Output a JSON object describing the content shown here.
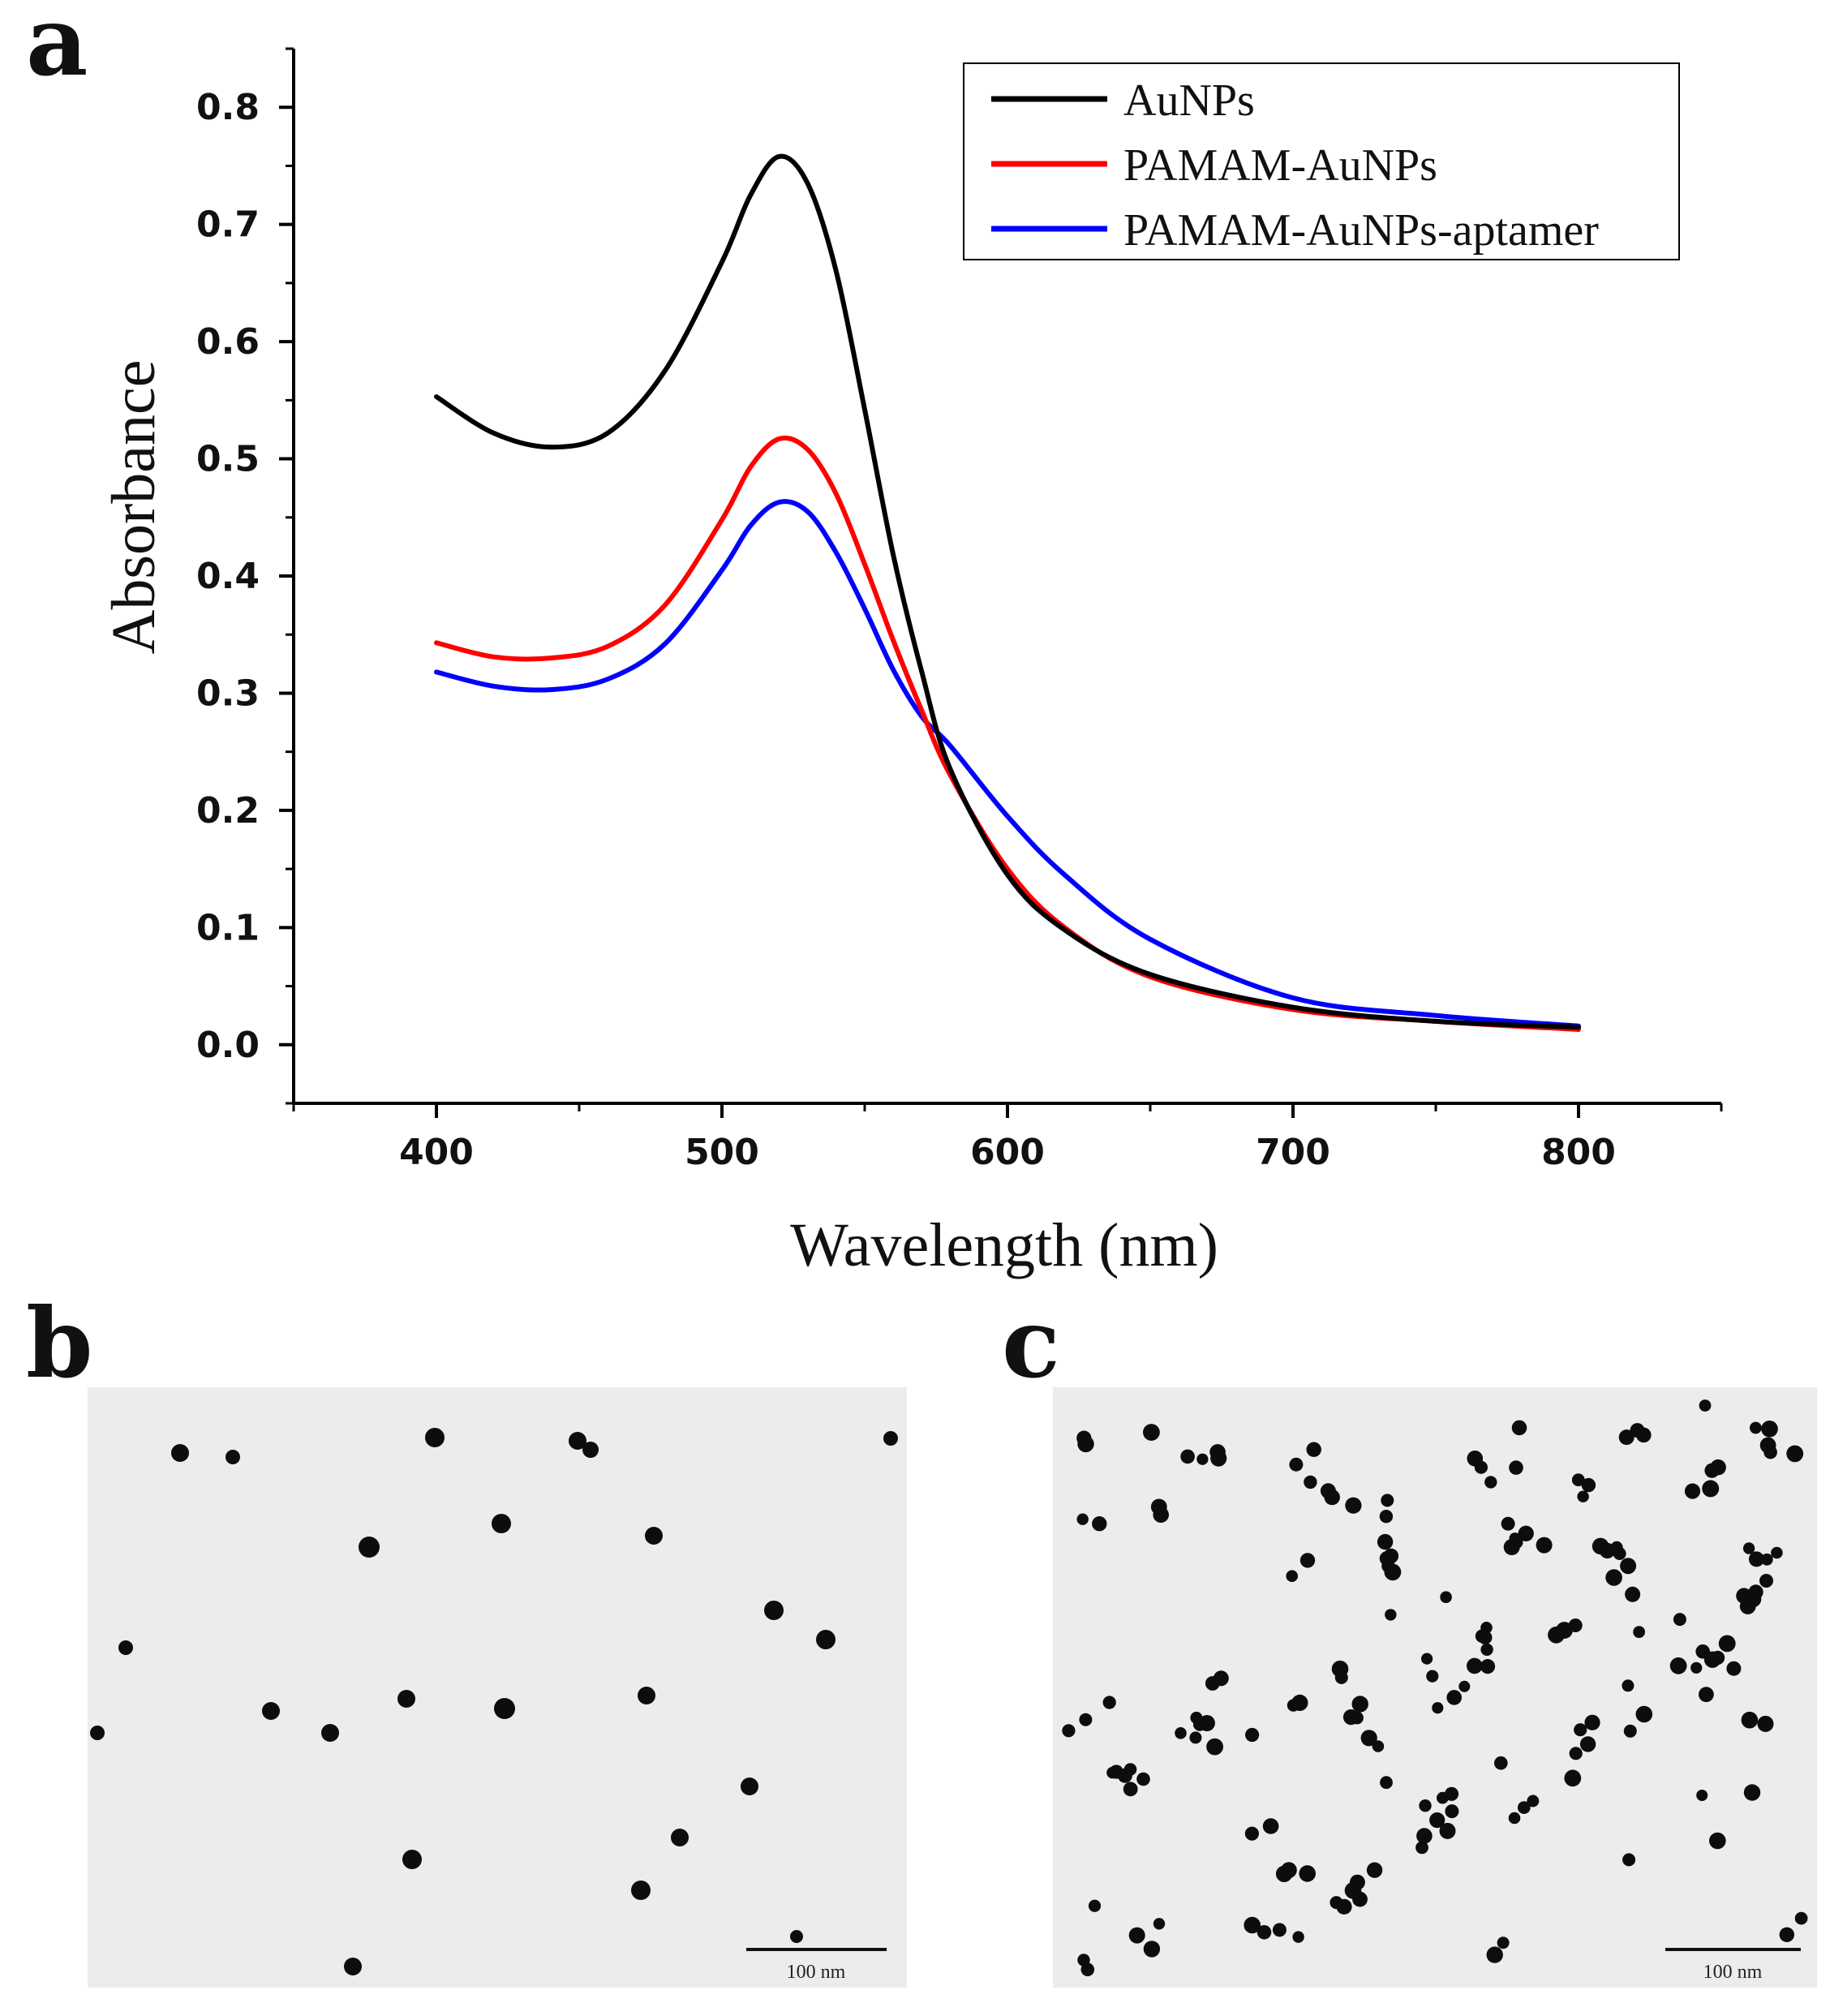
{
  "panels": {
    "a": "a",
    "b": "b",
    "c": "c"
  },
  "chart_data": {
    "type": "line",
    "title": "",
    "xlabel": "Wavelength (nm)",
    "ylabel": "Absorbance",
    "xlim": [
      350,
      850
    ],
    "ylim": [
      -0.05,
      0.85
    ],
    "xticks": [
      400,
      500,
      600,
      700,
      800
    ],
    "yticks": [
      0.0,
      0.1,
      0.2,
      0.3,
      0.4,
      0.5,
      0.6,
      0.7,
      0.8
    ],
    "ytick_labels": [
      "0.0",
      "0.1",
      "0.2",
      "0.3",
      "0.4",
      "0.5",
      "0.6",
      "0.7",
      "0.8"
    ],
    "legend_position": "top-right",
    "grid": false,
    "series": [
      {
        "name": "AuNPs",
        "color": "#000000",
        "x": [
          400,
          420,
          440,
          460,
          480,
          500,
          510,
          520,
          530,
          540,
          550,
          560,
          570,
          580,
          600,
          620,
          650,
          700,
          750,
          800
        ],
        "y": [
          0.553,
          0.522,
          0.51,
          0.522,
          0.575,
          0.668,
          0.725,
          0.758,
          0.735,
          0.66,
          0.542,
          0.418,
          0.318,
          0.235,
          0.145,
          0.098,
          0.06,
          0.032,
          0.02,
          0.015
        ]
      },
      {
        "name": "PAMAM-AuNPs",
        "color": "#ff0000",
        "x": [
          400,
          420,
          440,
          460,
          480,
          500,
          510,
          520,
          530,
          540,
          550,
          560,
          570,
          580,
          600,
          620,
          650,
          700,
          750,
          800
        ],
        "y": [
          0.343,
          0.331,
          0.33,
          0.34,
          0.375,
          0.448,
          0.493,
          0.517,
          0.508,
          0.47,
          0.41,
          0.345,
          0.285,
          0.23,
          0.15,
          0.1,
          0.058,
          0.03,
          0.02,
          0.013
        ]
      },
      {
        "name": "PAMAM-AuNPs-aptamer",
        "color": "#0000ff",
        "x": [
          400,
          420,
          440,
          460,
          480,
          500,
          510,
          520,
          530,
          540,
          550,
          560,
          570,
          580,
          600,
          620,
          650,
          700,
          750,
          800
        ],
        "y": [
          0.318,
          0.306,
          0.303,
          0.312,
          0.342,
          0.405,
          0.443,
          0.463,
          0.455,
          0.42,
          0.372,
          0.32,
          0.28,
          0.255,
          0.195,
          0.145,
          0.09,
          0.04,
          0.025,
          0.016
        ]
      }
    ]
  },
  "tem_images": [
    {
      "panel": "b",
      "scale_bar_label": "100 nm"
    },
    {
      "panel": "c",
      "scale_bar_label": "100 nm"
    }
  ],
  "colors": {
    "background": "#ffffff",
    "axis": "#000000",
    "tem_background": "#ececec",
    "particle": "#0d0d0d"
  }
}
